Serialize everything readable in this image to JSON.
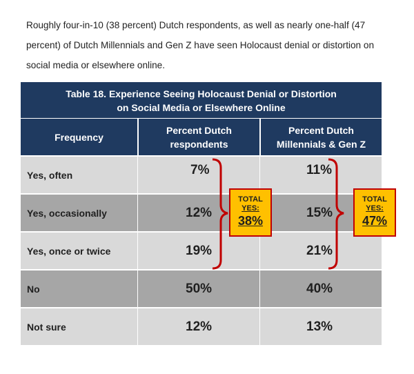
{
  "intro": "Roughly four-in-10 (38 percent) Dutch respondents, as well as nearly one-half (47 percent) of Dutch Millennials and Gen Z have seen Holocaust denial or distortion on social media or elsewhere online.",
  "table": {
    "title_line1": "Table 18. Experience Seeing Holocaust Denial or Distortion",
    "title_line2": "on Social Media or Elsewhere Online",
    "headers": {
      "frequency": "Frequency",
      "col1_line1": "Percent Dutch",
      "col1_line2": "respondents",
      "col2_line1": "Percent Dutch",
      "col2_line2": "Millennials & Gen Z"
    },
    "rows": [
      {
        "label": "Yes, often",
        "dutch": "7%",
        "genz": "11%"
      },
      {
        "label": "Yes, occasionally",
        "dutch": "12%",
        "genz": "15%"
      },
      {
        "label": "Yes, once or twice",
        "dutch": "19%",
        "genz": "21%"
      },
      {
        "label": "No",
        "dutch": "50%",
        "genz": "40%"
      },
      {
        "label": "Not sure",
        "dutch": "12%",
        "genz": "13%"
      }
    ],
    "totals": {
      "dutch": {
        "l1": "TOTAL",
        "l2": "YES:",
        "value": "38%"
      },
      "genz": {
        "l1": "TOTAL",
        "l2": "YES:",
        "value": "47%"
      }
    }
  },
  "colors": {
    "header_bg": "#1f3a60",
    "row_light": "#d9d9d9",
    "row_dark": "#a6a6a6",
    "brace": "#c00000",
    "total_bg": "#ffc000"
  }
}
